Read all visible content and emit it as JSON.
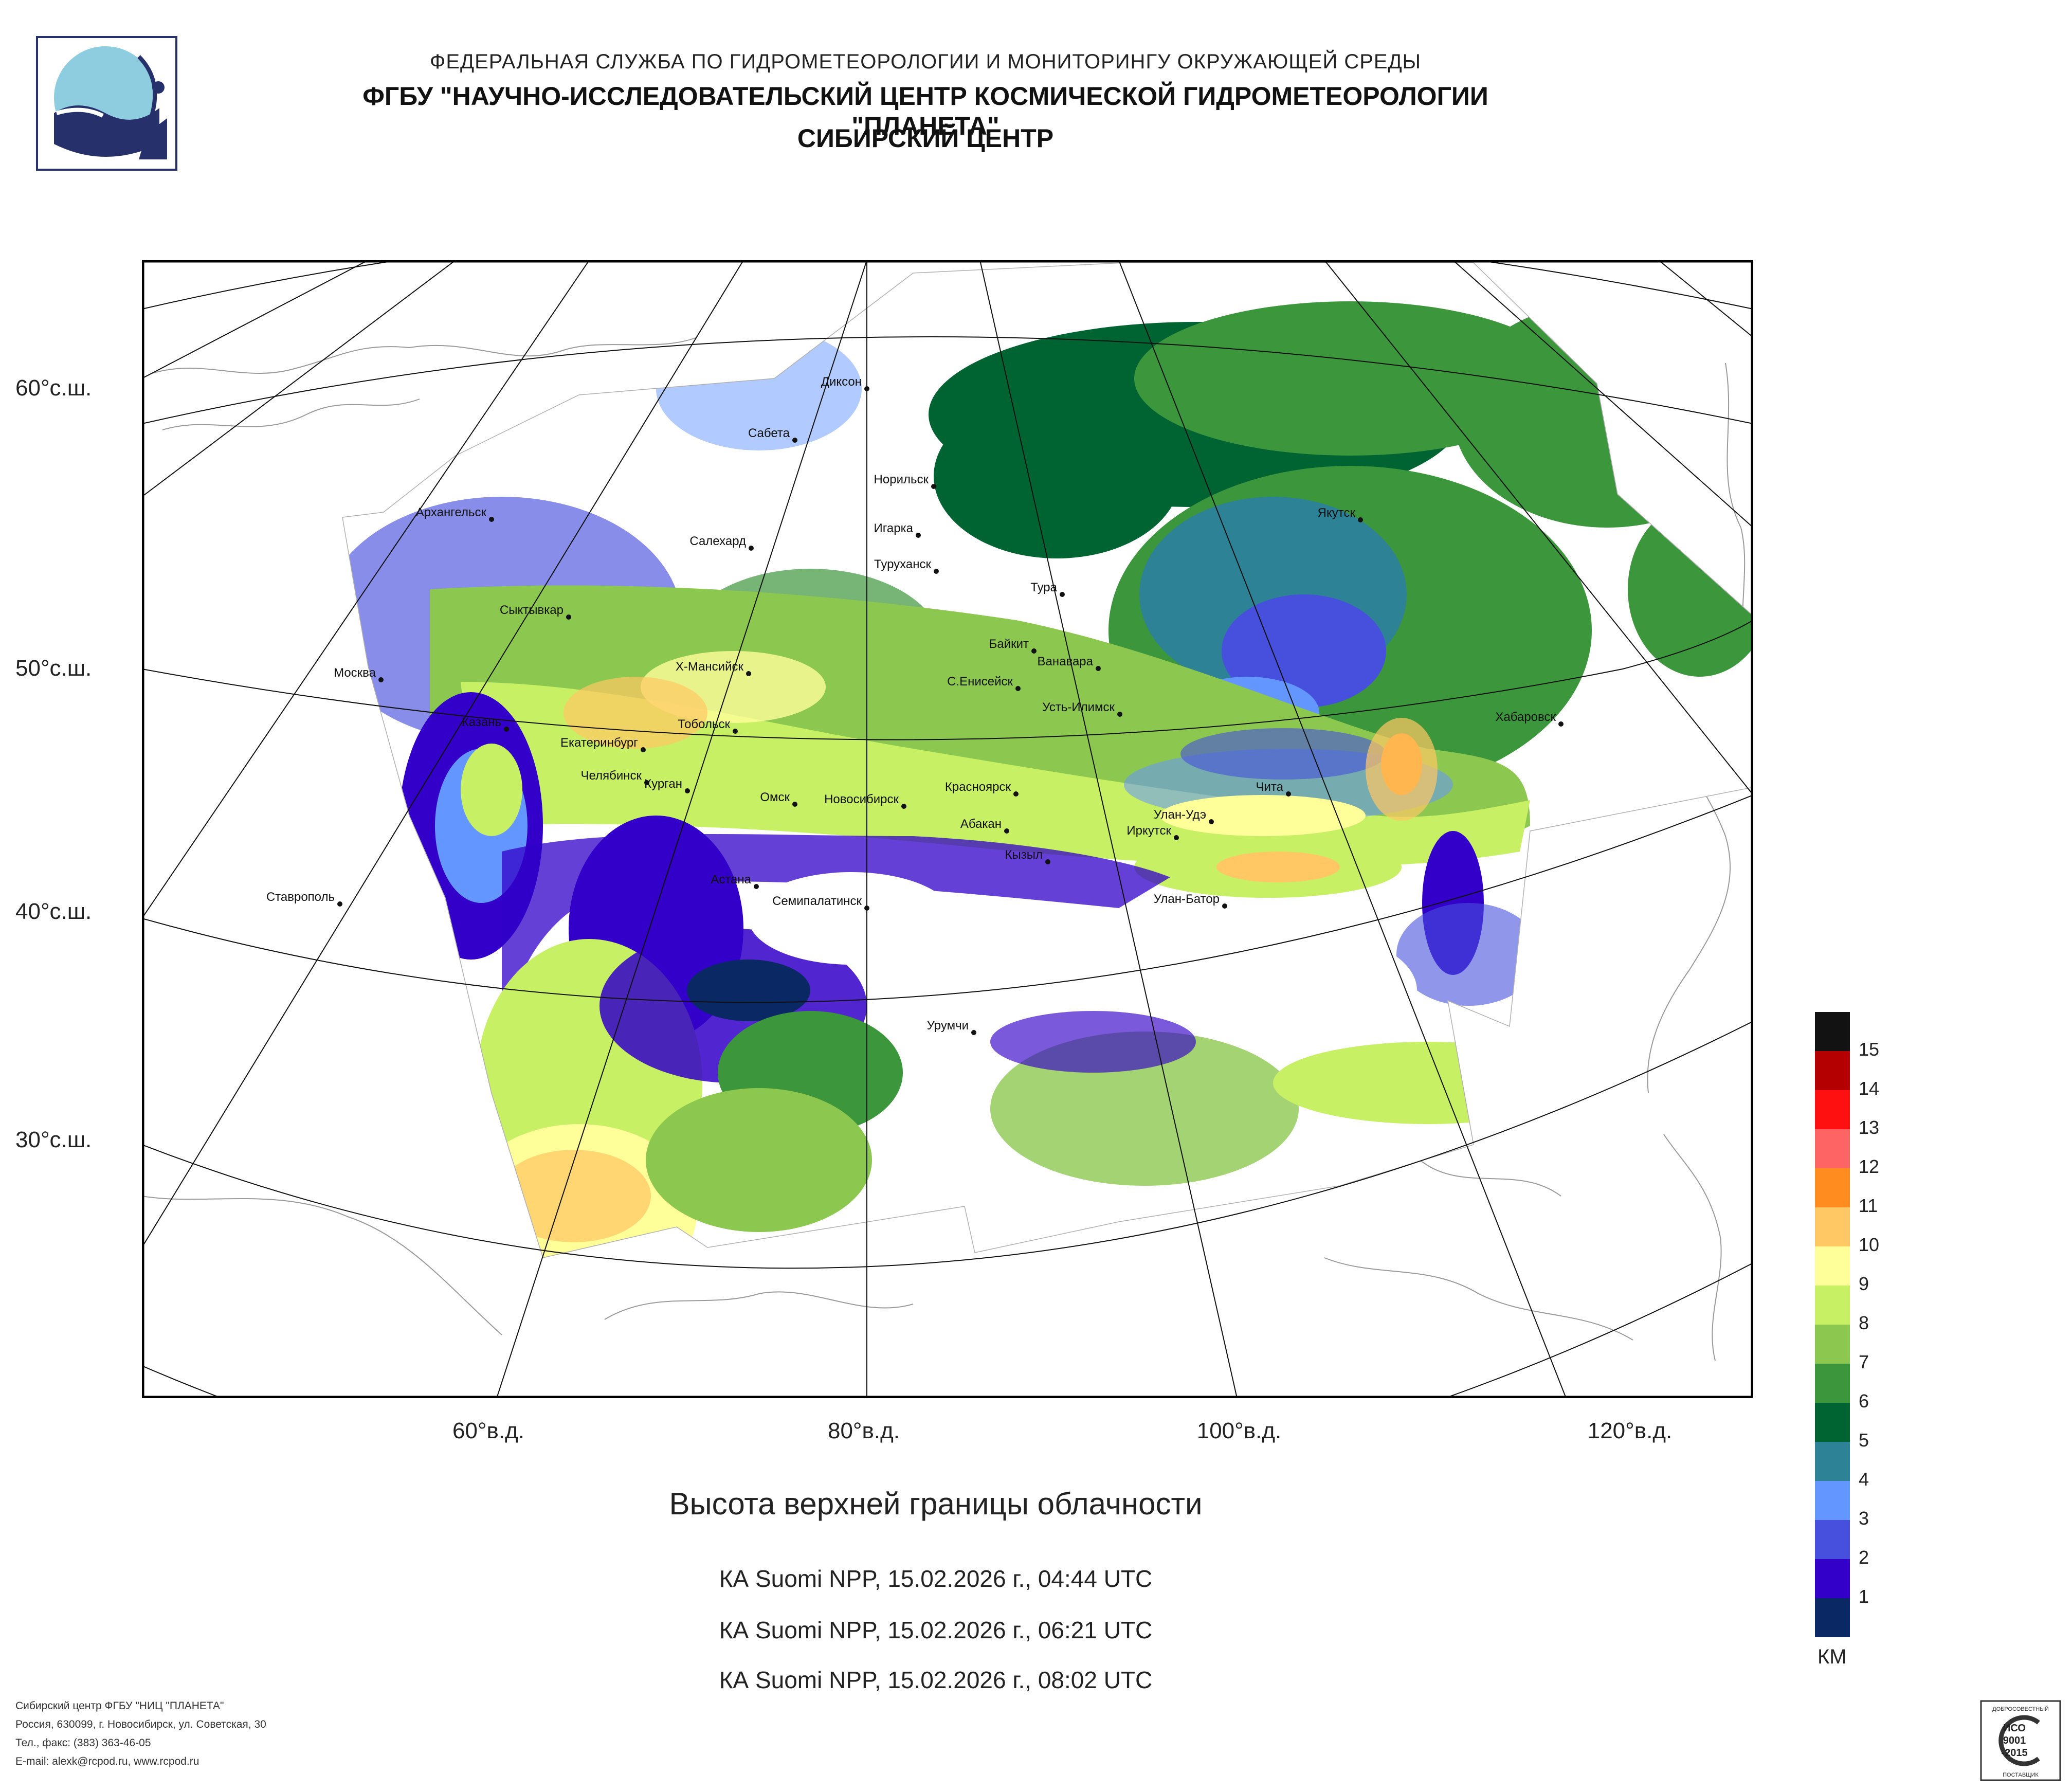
{
  "header": {
    "line1": "ФЕДЕРАЛЬНАЯ СЛУЖБА ПО ГИДРОМЕТЕОРОЛОГИИ И МОНИТОРИНГУ ОКРУЖАЮЩЕЙ СРЕДЫ",
    "line2": "ФГБУ \"НАУЧНО-ИССЛЕДОВАТЕЛЬСКИЙ ЦЕНТР КОСМИЧЕСКОЙ ГИДРОМЕТЕОРОЛОГИИ \"ПЛАНЕТА\"",
    "line3": "СИБИРСКИЙ ЦЕНТР"
  },
  "map": {
    "lat_labels": [
      "60°с.ш.",
      "50°с.ш.",
      "40°с.ш.",
      "30°с.ш."
    ],
    "lon_labels": [
      "60°в.д.",
      "80°в.д.",
      "100°в.д.",
      "120°в.д."
    ],
    "cities": [
      "Диксон",
      "Сабета",
      "Норильск",
      "Игарка",
      "Туруханск",
      "Архангельск",
      "Салехард",
      "Тура",
      "Якутск",
      "Сыктывкар",
      "Байкит",
      "Ванавара",
      "Москва",
      "Х-Мансийск",
      "С.Енисейск",
      "Усть-Илимск",
      "Казань",
      "Екатеринбург",
      "Тобольск",
      "Хабаровск",
      "Челябинск",
      "Курган",
      "Омск",
      "Новосибирск",
      "Красноярск",
      "Абакан",
      "Чита",
      "Улан-Удэ",
      "Иркутск",
      "Кызыл",
      "Астана",
      "Семипалатинск",
      "Улан-Батор",
      "Ставрополь",
      "Урумчи"
    ]
  },
  "caption": {
    "title": "Высота верхней границы облачности",
    "passes": [
      "КА Suomi NPP, 15.02.2026 г., 04:44 UTC",
      "КА Suomi NPP, 15.02.2026 г., 06:21 UTC",
      "КА Suomi NPP, 15.02.2026 г., 08:02 UTC"
    ]
  },
  "legend": {
    "unit": "КМ",
    "items": [
      {
        "label": "15",
        "color": "#121212"
      },
      {
        "label": "14",
        "color": "#b40000"
      },
      {
        "label": "13",
        "color": "#ff1010"
      },
      {
        "label": "12",
        "color": "#ff6464"
      },
      {
        "label": "11",
        "color": "#ff8c1e"
      },
      {
        "label": "10",
        "color": "#ffc864"
      },
      {
        "label": "9",
        "color": "#ffff9a"
      },
      {
        "label": "8",
        "color": "#c8f064"
      },
      {
        "label": "7",
        "color": "#8cc850"
      },
      {
        "label": "6",
        "color": "#3c963c"
      },
      {
        "label": "5",
        "color": "#006432"
      },
      {
        "label": "4",
        "color": "#2e8296"
      },
      {
        "label": "3",
        "color": "#6496ff"
      },
      {
        "label": "2",
        "color": "#4650dc"
      },
      {
        "label": "1",
        "color": "#3200c8"
      },
      {
        "label": "",
        "color": "#0a2864"
      }
    ]
  },
  "footer": {
    "org": "Сибирский центр ФГБУ \"НИЦ \"ПЛАНЕТА\"",
    "address": "Россия, 630099, г. Новосибирск, ул. Советская, 30",
    "phone": "Тел., факс: (383) 363-46-05",
    "email": "E-mail: alexk@rcpod.ru, www.rcpod.ru"
  },
  "iso": {
    "top": "ДОБРОСОВЕСТНЫЙ",
    "l1": "ИСО",
    "l2": "9001",
    "l3": "-2015",
    "bottom": "ПОСТАВЩИК"
  }
}
